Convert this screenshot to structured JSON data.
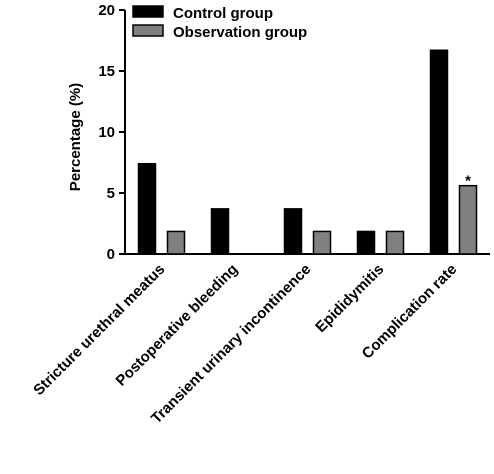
{
  "chart_data": {
    "type": "bar",
    "categories": [
      "Stricture urethral meatus",
      "Postoperative bleeding",
      "Transient urinary incontinence",
      "Epididymitis",
      "Complication rate"
    ],
    "series": [
      {
        "name": "Control group",
        "values": [
          7.4,
          3.7,
          3.7,
          1.85,
          16.7
        ],
        "color": "#000000"
      },
      {
        "name": "Observation group",
        "values": [
          1.85,
          0,
          1.85,
          1.85,
          5.6
        ],
        "color": "#808080"
      }
    ],
    "ylabel": "Percentage (%)",
    "ylim": [
      0,
      20
    ],
    "yticks": [
      0,
      5,
      10,
      15,
      20
    ],
    "legend_position": "top",
    "grid": false,
    "annotations": [
      {
        "text": "*",
        "category": "Complication rate",
        "series": "Observation group"
      }
    ]
  }
}
